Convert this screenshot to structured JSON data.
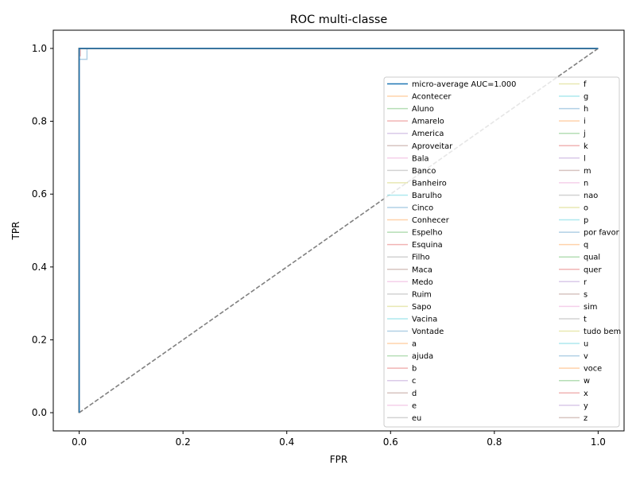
{
  "chart_data": {
    "type": "line",
    "title": "ROC multi-classe",
    "xlabel": "FPR",
    "ylabel": "TPR",
    "xlim": [
      -0.05,
      1.05
    ],
    "ylim": [
      -0.05,
      1.05
    ],
    "xticks": [
      "0.0",
      "0.2",
      "0.4",
      "0.6",
      "0.8",
      "1.0"
    ],
    "yticks": [
      "0.0",
      "0.2",
      "0.4",
      "0.6",
      "0.8",
      "1.0"
    ],
    "grid": false,
    "legend_position": "lower-right",
    "legend_columns": 2,
    "diagonal": {
      "x": [
        0,
        1
      ],
      "y": [
        0,
        1
      ],
      "style": "dashed",
      "color": "#808080"
    },
    "micro_average": {
      "name": "micro-average AUC=1.000",
      "color": "#1f77b4",
      "x": [
        0.0,
        0.0,
        1.0
      ],
      "y": [
        0.0,
        1.0,
        1.0
      ]
    },
    "class_series": [
      {
        "name": "Acontecer",
        "color": "#ff7f0e"
      },
      {
        "name": "Aluno",
        "color": "#2ca02c"
      },
      {
        "name": "Amarelo",
        "color": "#d62728"
      },
      {
        "name": "America",
        "color": "#9467bd"
      },
      {
        "name": "Aproveitar",
        "color": "#8c564b"
      },
      {
        "name": "Bala",
        "color": "#e377c2"
      },
      {
        "name": "Banco",
        "color": "#7f7f7f"
      },
      {
        "name": "Banheiro",
        "color": "#bcbd22"
      },
      {
        "name": "Barulho",
        "color": "#17becf"
      },
      {
        "name": "Cinco",
        "color": "#1f77b4",
        "x": [
          0.0,
          0.0,
          0.0,
          0.0,
          0.015,
          0.015,
          1.0
        ],
        "y": [
          0.0,
          0.95,
          0.97,
          0.97,
          0.97,
          1.0,
          1.0
        ]
      },
      {
        "name": "Conhecer",
        "color": "#ff7f0e"
      },
      {
        "name": "Espelho",
        "color": "#2ca02c"
      },
      {
        "name": "Esquina",
        "color": "#d62728"
      },
      {
        "name": "Filho",
        "color": "#7f7f7f"
      },
      {
        "name": "Maca",
        "color": "#8c564b"
      },
      {
        "name": "Medo",
        "color": "#e377c2"
      },
      {
        "name": "Ruim",
        "color": "#7f7f7f"
      },
      {
        "name": "Sapo",
        "color": "#bcbd22"
      },
      {
        "name": "Vacina",
        "color": "#17becf"
      },
      {
        "name": "Vontade",
        "color": "#1f77b4"
      },
      {
        "name": "a",
        "color": "#ff7f0e"
      },
      {
        "name": "ajuda",
        "color": "#2ca02c"
      },
      {
        "name": "b",
        "color": "#d62728",
        "x": [
          0.0,
          0.0,
          0.0,
          0.002,
          0.002,
          1.0
        ],
        "y": [
          0.0,
          0.97,
          0.98,
          0.98,
          1.0,
          1.0
        ]
      },
      {
        "name": "c",
        "color": "#9467bd"
      },
      {
        "name": "d",
        "color": "#8c564b"
      },
      {
        "name": "e",
        "color": "#e377c2"
      },
      {
        "name": "eu",
        "color": "#7f7f7f"
      },
      {
        "name": "f",
        "color": "#bcbd22"
      },
      {
        "name": "g",
        "color": "#17becf"
      },
      {
        "name": "h",
        "color": "#1f77b4"
      },
      {
        "name": "i",
        "color": "#ff7f0e"
      },
      {
        "name": "j",
        "color": "#2ca02c"
      },
      {
        "name": "k",
        "color": "#d62728"
      },
      {
        "name": "l",
        "color": "#9467bd"
      },
      {
        "name": "m",
        "color": "#8c564b"
      },
      {
        "name": "n",
        "color": "#e377c2"
      },
      {
        "name": "nao",
        "color": "#7f7f7f"
      },
      {
        "name": "o",
        "color": "#bcbd22"
      },
      {
        "name": "p",
        "color": "#17becf"
      },
      {
        "name": "por favor",
        "color": "#1f77b4"
      },
      {
        "name": "q",
        "color": "#ff7f0e"
      },
      {
        "name": "qual",
        "color": "#2ca02c"
      },
      {
        "name": "quer",
        "color": "#d62728"
      },
      {
        "name": "r",
        "color": "#9467bd"
      },
      {
        "name": "s",
        "color": "#8c564b"
      },
      {
        "name": "sim",
        "color": "#e377c2"
      },
      {
        "name": "t",
        "color": "#7f7f7f"
      },
      {
        "name": "tudo bem",
        "color": "#bcbd22"
      },
      {
        "name": "u",
        "color": "#17becf"
      },
      {
        "name": "v",
        "color": "#1f77b4"
      },
      {
        "name": "voce",
        "color": "#ff7f0e"
      },
      {
        "name": "w",
        "color": "#2ca02c"
      },
      {
        "name": "x",
        "color": "#d62728"
      },
      {
        "name": "y",
        "color": "#9467bd"
      },
      {
        "name": "z",
        "color": "#8c564b"
      }
    ],
    "default_class_curve": {
      "x": [
        0.0,
        0.0,
        1.0
      ],
      "y": [
        0.0,
        1.0,
        1.0
      ]
    }
  }
}
